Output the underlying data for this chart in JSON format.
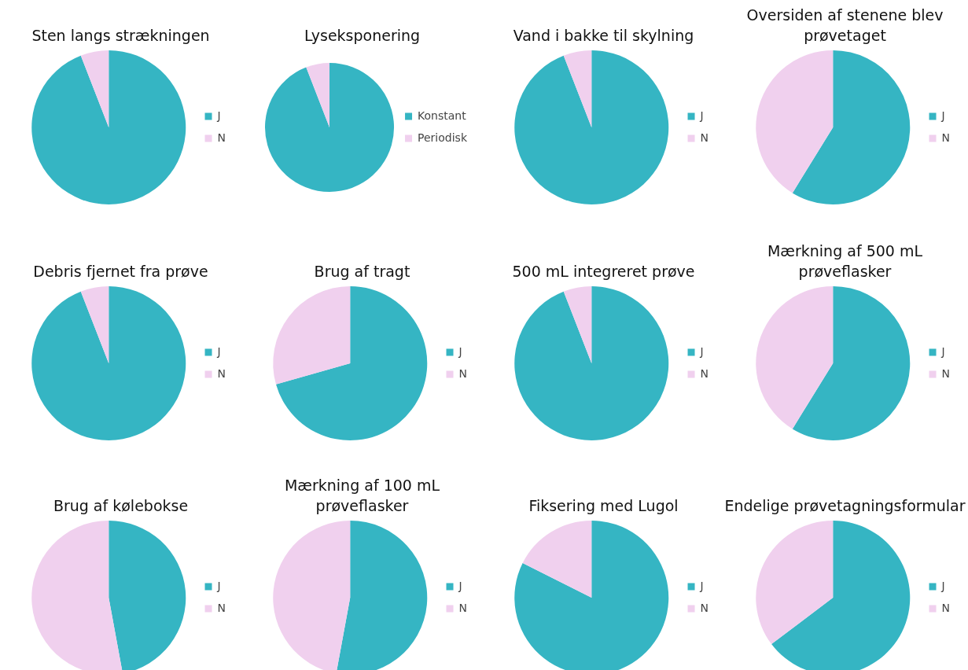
{
  "chart_data": [
    {
      "type": "pie",
      "title": "Sten langs strækningen",
      "categories": [
        "J",
        "N"
      ],
      "values": [
        94.1,
        5.9
      ],
      "colors": [
        "#35b5c3",
        "#f0d0ee"
      ],
      "legend": "right"
    },
    {
      "type": "pie",
      "title": "Lyseksponering",
      "categories": [
        "Konstant",
        "Periodisk"
      ],
      "values": [
        94.1,
        5.9
      ],
      "colors": [
        "#35b5c3",
        "#f0d0ee"
      ],
      "legend": "right"
    },
    {
      "type": "pie",
      "title": "Vand i bakke til skylning",
      "categories": [
        "J",
        "N"
      ],
      "values": [
        94.1,
        5.9
      ],
      "colors": [
        "#35b5c3",
        "#f0d0ee"
      ],
      "legend": "right"
    },
    {
      "type": "pie",
      "title": "Oversiden af stenene blev prøvetaget",
      "categories": [
        "J",
        "N"
      ],
      "values": [
        58.8,
        41.2
      ],
      "colors": [
        "#35b5c3",
        "#f0d0ee"
      ],
      "legend": "right"
    },
    {
      "type": "pie",
      "title": "Debris fjernet fra prøve",
      "categories": [
        "J",
        "N"
      ],
      "values": [
        94.1,
        5.9
      ],
      "colors": [
        "#35b5c3",
        "#f0d0ee"
      ],
      "legend": "right"
    },
    {
      "type": "pie",
      "title": "Brug af tragt",
      "categories": [
        "J",
        "N"
      ],
      "values": [
        70.6,
        29.4
      ],
      "colors": [
        "#35b5c3",
        "#f0d0ee"
      ],
      "legend": "right"
    },
    {
      "type": "pie",
      "title": "500 mL integreret prøve",
      "categories": [
        "J",
        "N"
      ],
      "values": [
        94.1,
        5.9
      ],
      "colors": [
        "#35b5c3",
        "#f0d0ee"
      ],
      "legend": "right"
    },
    {
      "type": "pie",
      "title": "Mærkning af 500 mL prøveflasker",
      "categories": [
        "J",
        "N"
      ],
      "values": [
        58.8,
        41.2
      ],
      "colors": [
        "#35b5c3",
        "#f0d0ee"
      ],
      "legend": "right"
    },
    {
      "type": "pie",
      "title": "Brug af kølebokse",
      "categories": [
        "J",
        "N"
      ],
      "values": [
        47.1,
        52.9
      ],
      "colors": [
        "#35b5c3",
        "#f0d0ee"
      ],
      "legend": "right"
    },
    {
      "type": "pie",
      "title": "Mærkning af 100 mL prøveflasker",
      "categories": [
        "J",
        "N"
      ],
      "values": [
        52.9,
        47.1
      ],
      "colors": [
        "#35b5c3",
        "#f0d0ee"
      ],
      "legend": "right"
    },
    {
      "type": "pie",
      "title": "Fiksering med Lugol",
      "categories": [
        "J",
        "N"
      ],
      "values": [
        82.4,
        17.6
      ],
      "colors": [
        "#35b5c3",
        "#f0d0ee"
      ],
      "legend": "right"
    },
    {
      "type": "pie",
      "title": "Endelige prøvetagningsformular",
      "categories": [
        "J",
        "N"
      ],
      "values": [
        64.7,
        35.3
      ],
      "colors": [
        "#35b5c3",
        "#f0d0ee"
      ],
      "legend": "right"
    }
  ]
}
